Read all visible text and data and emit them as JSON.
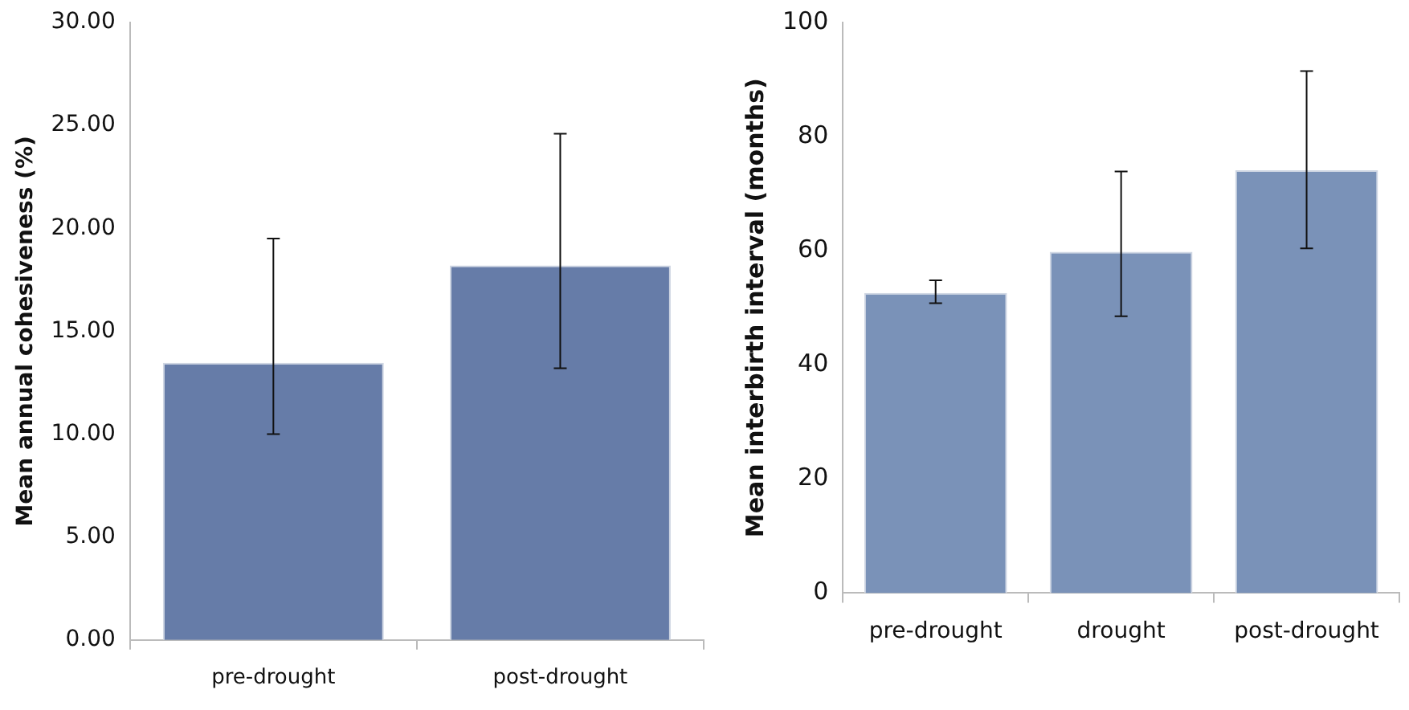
{
  "chart_data": [
    {
      "type": "bar",
      "ylabel": "Mean annual cohesiveness (%)",
      "categories": [
        "pre-drought",
        "post-drought"
      ],
      "values": [
        13.46,
        18.2
      ],
      "color": "#667ca8",
      "errors": [
        [
          10.0,
          19.5
        ],
        [
          13.2,
          24.6
        ]
      ],
      "ylim": [
        0,
        30
      ],
      "yticks": [
        {
          "value": 0,
          "label": "0.00"
        },
        {
          "value": 5,
          "label": "5.00"
        },
        {
          "value": 10,
          "label": "10.00"
        },
        {
          "value": 15,
          "label": "15.00"
        },
        {
          "value": 20,
          "label": "20.00"
        },
        {
          "value": 25,
          "label": "25.00"
        },
        {
          "value": 30,
          "label": "30.00"
        }
      ],
      "grid": false,
      "legend": false
    },
    {
      "type": "bar",
      "ylabel": "Mean interbirth interval (months)",
      "categories": [
        "pre-drought",
        "drought",
        "post-drought"
      ],
      "values": [
        52.6,
        59.8,
        74.1
      ],
      "color": "#7a92b8",
      "errors": [
        [
          50.8,
          54.8
        ],
        [
          48.5,
          73.9
        ],
        [
          60.4,
          91.5
        ]
      ],
      "ylim": [
        0,
        100
      ],
      "yticks": [
        0,
        20,
        40,
        60,
        80,
        100
      ],
      "grid": false,
      "legend": false
    }
  ]
}
